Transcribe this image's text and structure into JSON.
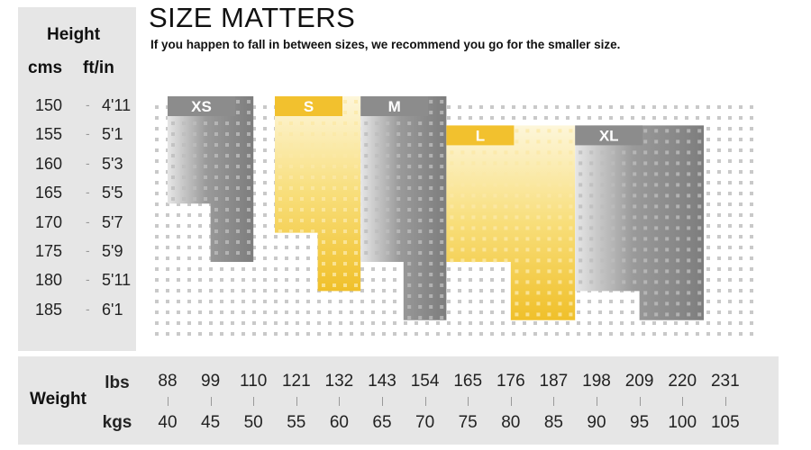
{
  "header": {
    "title": "SIZE MATTERS",
    "subtitle": "If you happen to fall in between sizes, we recommend you go for the smaller size."
  },
  "height_axis": {
    "title": "Height",
    "col_cms": "cms",
    "col_ftin": "ft/in",
    "dash": "-",
    "rows": [
      {
        "cms": "150",
        "ftin": "4'11"
      },
      {
        "cms": "155",
        "ftin": "5'1"
      },
      {
        "cms": "160",
        "ftin": "5'3"
      },
      {
        "cms": "165",
        "ftin": "5'5"
      },
      {
        "cms": "170",
        "ftin": "5'7"
      },
      {
        "cms": "175",
        "ftin": "5'9"
      },
      {
        "cms": "180",
        "ftin": "5'11"
      },
      {
        "cms": "185",
        "ftin": "6'1"
      }
    ]
  },
  "weight_axis": {
    "title": "Weight",
    "lbs_label": "lbs",
    "kgs_label": "kgs",
    "lbs": [
      "88",
      "99",
      "110",
      "121",
      "132",
      "143",
      "154",
      "165",
      "176",
      "187",
      "198",
      "209",
      "220",
      "231"
    ],
    "kgs": [
      "40",
      "45",
      "50",
      "55",
      "60",
      "65",
      "70",
      "75",
      "80",
      "85",
      "90",
      "95",
      "100",
      "105"
    ]
  },
  "chart_data": {
    "type": "heatmap",
    "title": "SIZE MATTERS",
    "subtitle": "If you happen to fall in between sizes, we recommend you go for the smaller size.",
    "xlabel": "Weight (lbs / kgs)",
    "ylabel": "Height (cms / ft/in)",
    "x_kgs": [
      40,
      45,
      50,
      55,
      60,
      65,
      70,
      75,
      80,
      85,
      90,
      95,
      100,
      105
    ],
    "y_cms": [
      150,
      155,
      160,
      165,
      170,
      175,
      180,
      185
    ],
    "sizes": [
      {
        "name": "XS",
        "color": "#8c8c8c",
        "kg_min": 40,
        "kg_max": 50,
        "cm_min": 150,
        "cm_max": 165,
        "cm_max_at_higher_kg": 175
      },
      {
        "name": "S",
        "color": "#f2c12e",
        "kg_min": 52.5,
        "kg_max": 62.5,
        "cm_min": 150,
        "cm_max": 170,
        "cm_max_at_higher_kg": 180
      },
      {
        "name": "M",
        "color": "#8c8c8c",
        "kg_min": 62.5,
        "kg_max": 72.5,
        "cm_min": 150,
        "cm_max": 175,
        "cm_max_at_higher_kg": 185
      },
      {
        "name": "L",
        "color": "#f2c12e",
        "kg_min": 72.5,
        "kg_max": 87.5,
        "cm_min": 155,
        "cm_max": 175,
        "cm_max_at_higher_kg": 185
      },
      {
        "name": "XL",
        "color": "#8c8c8c",
        "kg_min": 87.5,
        "kg_max": 102.5,
        "cm_min": 155,
        "cm_max": 180,
        "cm_max_at_higher_kg": 185
      }
    ]
  }
}
